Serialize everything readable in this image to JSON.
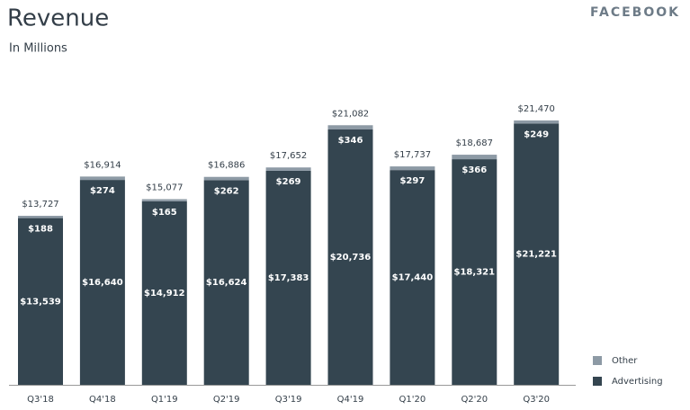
{
  "brand": "FACEBOOK",
  "chart_data": {
    "type": "stacked_bar",
    "title": "Revenue",
    "subtitle": "In Millions",
    "categories": [
      "Q3'18",
      "Q4'18",
      "Q1'19",
      "Q2'19",
      "Q3'19",
      "Q4'19",
      "Q1'20",
      "Q2'20",
      "Q3'20"
    ],
    "series": [
      {
        "name": "Advertising",
        "color": "#344550",
        "values": [
          13539,
          16640,
          14912,
          16624,
          17383,
          20736,
          17440,
          18321,
          21221
        ],
        "value_labels": [
          "$13,539",
          "$16,640",
          "$14,912",
          "$16,624",
          "$17,383",
          "$20,736",
          "$17,440",
          "$18,321",
          "$21,221"
        ]
      },
      {
        "name": "Other",
        "color": "#8d9aa5",
        "values": [
          188,
          274,
          165,
          262,
          269,
          346,
          297,
          366,
          249
        ],
        "value_labels": [
          "$188",
          "$274",
          "$165",
          "$262",
          "$269",
          "$346",
          "$297",
          "$366",
          "$249"
        ]
      }
    ],
    "totals": {
      "values": [
        13727,
        16914,
        15077,
        16886,
        17652,
        21082,
        17737,
        18687,
        21470
      ],
      "value_labels": [
        "$13,727",
        "$16,914",
        "$15,077",
        "$16,886",
        "$17,652",
        "$21,082",
        "$17,737",
        "$18,687",
        "$21,470"
      ]
    },
    "ylim": [
      0,
      23000
    ]
  }
}
